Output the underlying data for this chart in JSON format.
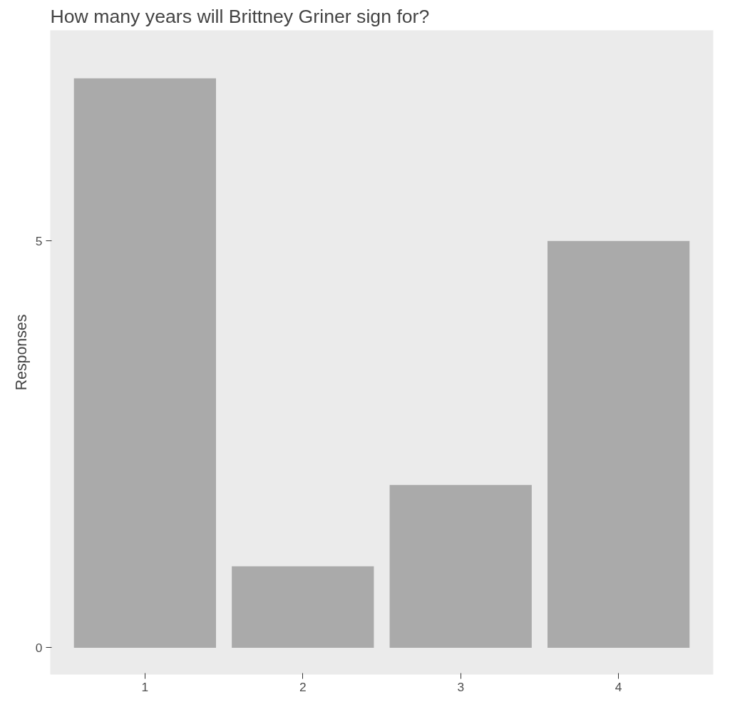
{
  "chart_data": {
    "type": "bar",
    "title": "How many years will Brittney Griner sign for?",
    "ylabel": "Responses",
    "categories": [
      "1",
      "2",
      "3",
      "4"
    ],
    "values": [
      7,
      1,
      2,
      5
    ],
    "color": "#aaaaaa",
    "ylim": [
      -0.33,
      7.59
    ],
    "yticks": [
      0,
      5
    ],
    "grid": false
  }
}
